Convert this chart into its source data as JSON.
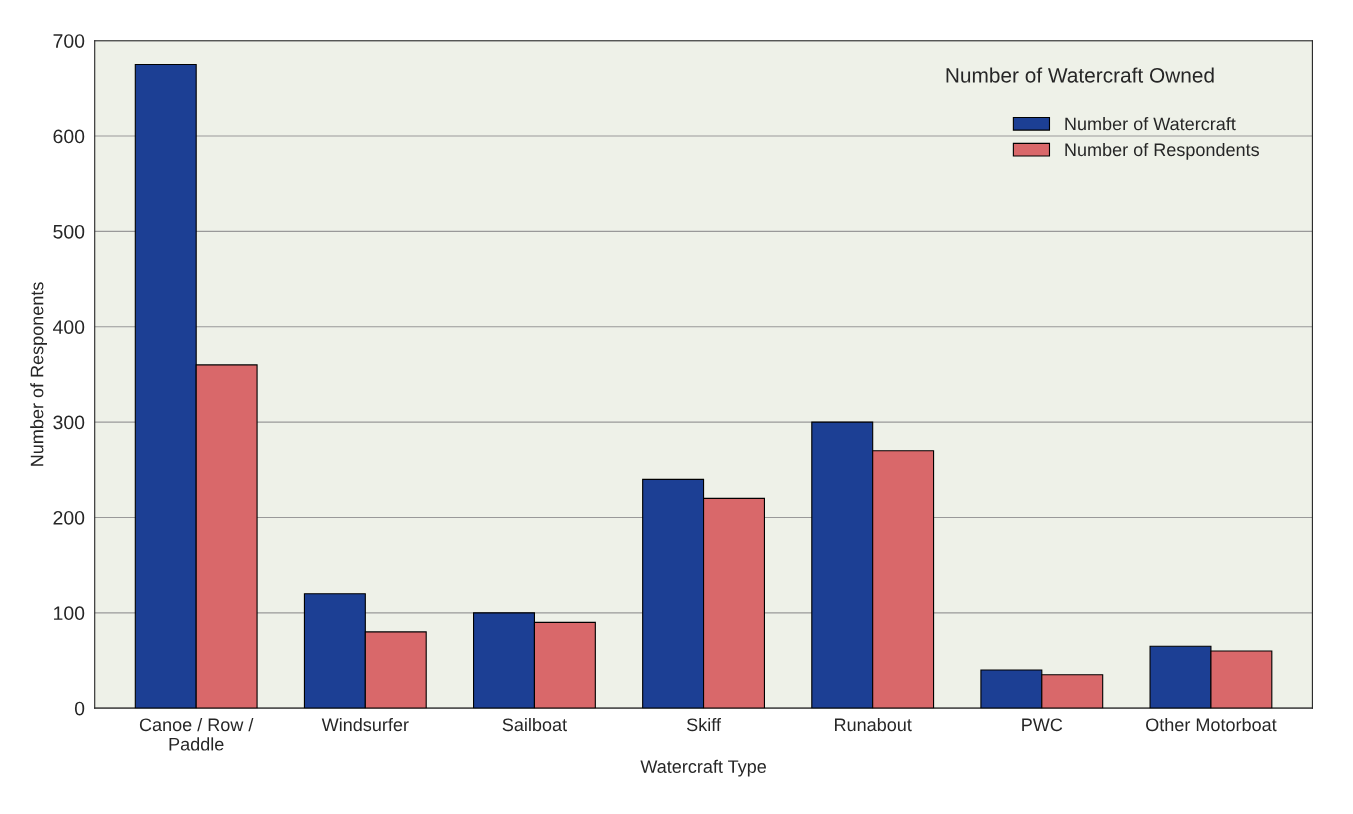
{
  "chart_data": {
    "type": "bar",
    "title": "Number of Watercraft Owned",
    "xlabel": "Watercraft Type",
    "ylabel": "Number of Responents",
    "categories": [
      "Canoe / Row /\nPaddle",
      "Windsurfer",
      "Sailboat",
      "Skiff",
      "Runabout",
      "PWC",
      "Other Motorboat"
    ],
    "series": [
      {
        "name": "Number of Watercraft",
        "color": "#1c3f94",
        "values": [
          675,
          120,
          100,
          240,
          300,
          40,
          65
        ]
      },
      {
        "name": "Number of Respondents",
        "color": "#d9686a",
        "values": [
          360,
          80,
          90,
          220,
          270,
          35,
          60
        ]
      }
    ],
    "ylim": [
      0,
      700
    ],
    "yticks": [
      0,
      100,
      200,
      300,
      400,
      500,
      600,
      700
    ],
    "grid": "y",
    "legend": "top right"
  }
}
